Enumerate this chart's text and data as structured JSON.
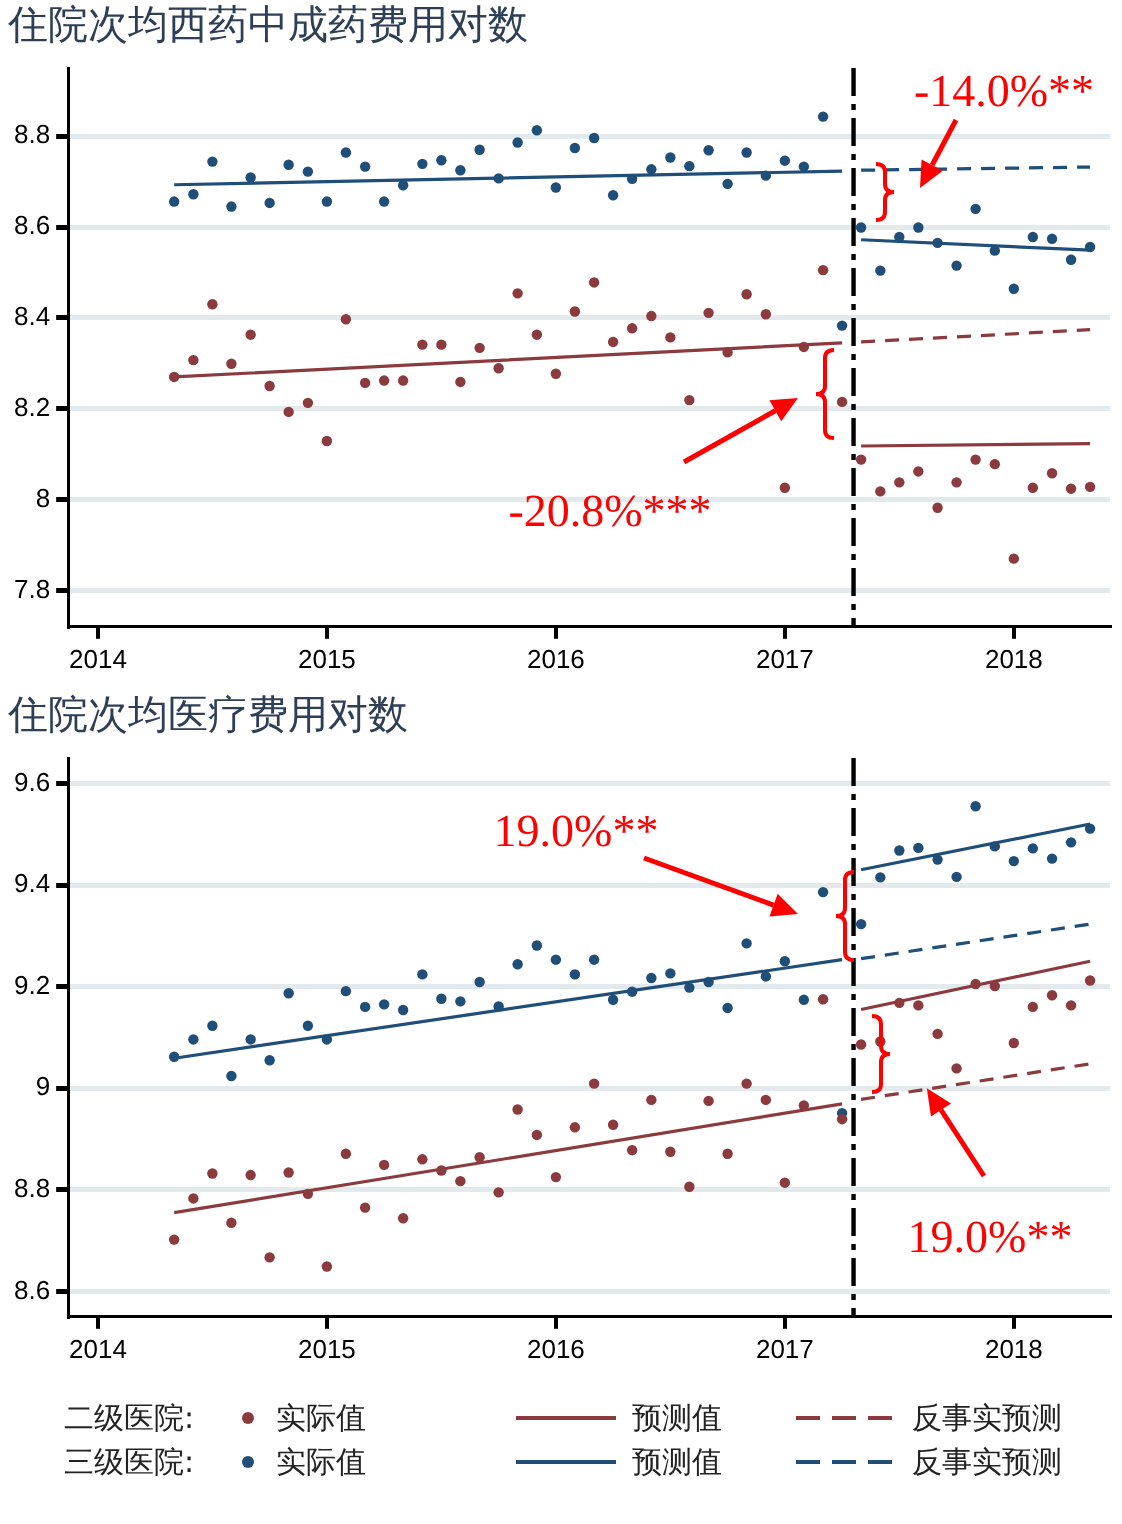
{
  "chart_data": [
    {
      "type": "scatter",
      "title": "住院次均西药中成药费用对数",
      "x": [
        2014.333,
        2014.417,
        2014.5,
        2014.583,
        2014.667,
        2014.75,
        2014.833,
        2014.917,
        2015,
        2015.083,
        2015.167,
        2015.25,
        2015.333,
        2015.417,
        2015.5,
        2015.583,
        2015.667,
        2015.75,
        2015.833,
        2015.917,
        2016,
        2016.083,
        2016.167,
        2016.25,
        2016.333,
        2016.417,
        2016.5,
        2016.583,
        2016.667,
        2016.75,
        2016.833,
        2016.917,
        2017,
        2017.083,
        2017.167,
        2017.25,
        2017.333,
        2017.417,
        2017.5,
        2017.583,
        2017.667,
        2017.75,
        2017.833,
        2017.917,
        2018,
        2018.083,
        2018.167,
        2018.25,
        2018.333
      ],
      "xlim": [
        2013.87,
        2018.42
      ],
      "xticks": [
        2014,
        2015,
        2016,
        2017,
        2018
      ],
      "ylim": [
        7.72,
        8.95
      ],
      "yticks": [
        7.8,
        8,
        8.2,
        8.4,
        8.6,
        8.8
      ],
      "grid": "y",
      "ref_lines": [
        {
          "axis": "x",
          "value": 2017.3,
          "color": "#000000",
          "line_style": "dashed"
        }
      ],
      "annotations": [
        "-14.0%**",
        "-20.8%***"
      ],
      "series": [
        {
          "marker": "circle",
          "color": "#8b3a3e",
          "values": [
            8.27,
            8.307,
            8.43,
            8.299,
            8.363,
            8.25,
            8.193,
            8.213,
            8.129,
            8.397,
            8.257,
            8.262,
            8.262,
            8.341,
            8.341,
            8.259,
            8.334,
            8.289,
            8.454,
            8.363,
            8.277,
            8.414,
            8.478,
            8.347,
            8.377,
            8.404,
            8.357,
            8.219,
            8.411,
            8.324,
            8.452,
            8.408,
            8.026,
            8.336,
            8.505,
            8.215,
            8.088,
            8.018,
            8.038,
            8.062,
            7.982,
            8.038,
            8.088,
            8.078,
            7.87,
            8.026,
            8.058,
            8.024,
            8.028
          ]
        },
        {
          "type": "line",
          "color": "#8b3a3e",
          "x": [
            2014.333,
            2017.25,
            2017.3,
            2017.333,
            2018.333
          ],
          "values": [
            8.27,
            8.345,
            null,
            8.118,
            8.123
          ]
        },
        {
          "type": "line",
          "color": "#8b3a3e",
          "line_style": "dashed",
          "x": [
            2017.333,
            2018.333
          ],
          "values": [
            8.347,
            8.374
          ]
        },
        {
          "marker": "circle",
          "color": "#1f4e79",
          "values": [
            8.656,
            8.672,
            8.744,
            8.645,
            8.709,
            8.653,
            8.737,
            8.722,
            8.656,
            8.764,
            8.733,
            8.656,
            8.692,
            8.739,
            8.747,
            8.725,
            8.77,
            8.707,
            8.786,
            8.813,
            8.687,
            8.774,
            8.796,
            8.67,
            8.706,
            8.727,
            8.753,
            8.734,
            8.769,
            8.695,
            8.764,
            8.713,
            8.746,
            8.733,
            8.843,
            8.383,
            8.599,
            8.504,
            8.578,
            8.599,
            8.565,
            8.515,
            8.64,
            8.548,
            8.464,
            8.578,
            8.574,
            8.528,
            8.556
          ]
        },
        {
          "type": "line",
          "color": "#1f4e79",
          "x": [
            2014.333,
            2017.25,
            2017.3,
            2017.333,
            2018.333
          ],
          "values": [
            8.693,
            8.723,
            null,
            8.572,
            8.549
          ]
        },
        {
          "type": "line",
          "color": "#1f4e79",
          "line_style": "dashed",
          "x": [
            2017.333,
            2018.333
          ],
          "values": [
            8.725,
            8.732
          ]
        }
      ]
    },
    {
      "type": "scatter",
      "title": "住院次均医疗费用对数",
      "x": [
        2014.333,
        2014.417,
        2014.5,
        2014.583,
        2014.667,
        2014.75,
        2014.833,
        2014.917,
        2015,
        2015.083,
        2015.167,
        2015.25,
        2015.333,
        2015.417,
        2015.5,
        2015.583,
        2015.667,
        2015.75,
        2015.833,
        2015.917,
        2016,
        2016.083,
        2016.167,
        2016.25,
        2016.333,
        2016.417,
        2016.5,
        2016.583,
        2016.667,
        2016.75,
        2016.833,
        2016.917,
        2017,
        2017.083,
        2017.167,
        2017.25,
        2017.333,
        2017.417,
        2017.5,
        2017.583,
        2017.667,
        2017.75,
        2017.833,
        2017.917,
        2018,
        2018.083,
        2018.167,
        2018.25,
        2018.333
      ],
      "xlim": [
        2013.87,
        2018.42
      ],
      "xticks": [
        2014,
        2015,
        2016,
        2017,
        2018
      ],
      "ylim": [
        8.55,
        9.65
      ],
      "yticks": [
        8.6,
        8.8,
        9,
        9.2,
        9.4,
        9.6
      ],
      "grid": "y",
      "legend": "bottom",
      "ref_lines": [
        {
          "axis": "x",
          "value": 2017.3,
          "color": "#000000",
          "line_style": "dashed"
        }
      ],
      "annotations": [
        "19.0%**",
        {
          "text": "19.0%**",
          "x": 2017.62,
          "y": 9.0
        },
        "二级医院:",
        "三级医院:"
      ],
      "series": [
        {
          "marker": "circle",
          "name": "实际值",
          "color": "#8b3a3e",
          "values": [
            8.702,
            8.783,
            8.832,
            8.735,
            8.829,
            8.667,
            8.834,
            8.792,
            8.649,
            8.871,
            8.765,
            8.849,
            8.744,
            8.86,
            8.838,
            8.817,
            8.864,
            8.795,
            8.958,
            8.908,
            8.825,
            8.923,
            9.009,
            8.928,
            8.878,
            8.977,
            8.875,
            8.806,
            8.975,
            8.871,
            9.009,
            8.977,
            8.814,
            8.966,
            9.175,
            8.939,
            9.086,
            9.092,
            9.168,
            9.163,
            9.107,
            9.039,
            9.205,
            9.201,
            9.089,
            9.16,
            9.183,
            9.163,
            9.212
          ]
        },
        {
          "type": "line",
          "name": "预测值",
          "color": "#8b3a3e",
          "x": [
            2014.333,
            2017.25,
            2017.3,
            2017.333,
            2018.333
          ],
          "values": [
            8.755,
            8.969,
            null,
            9.155,
            9.25
          ]
        },
        {
          "type": "line",
          "name": "反事实预测",
          "color": "#8b3a3e",
          "line_style": "dashed",
          "x": [
            2017.333,
            2018.333
          ],
          "values": [
            8.978,
            9.048
          ]
        },
        {
          "marker": "circle",
          "name": "实际值",
          "color": "#1f4e79",
          "values": [
            9.062,
            9.096,
            9.123,
            9.024,
            9.096,
            9.055,
            9.187,
            9.123,
            9.096,
            9.191,
            9.16,
            9.165,
            9.154,
            9.224,
            9.176,
            9.171,
            9.209,
            9.161,
            9.244,
            9.281,
            9.253,
            9.224,
            9.253,
            9.174,
            9.19,
            9.217,
            9.226,
            9.198,
            9.209,
            9.158,
            9.285,
            9.22,
            9.25,
            9.174,
            9.386,
            8.951,
            9.323,
            9.415,
            9.468,
            9.473,
            9.45,
            9.416,
            9.555,
            9.476,
            9.447,
            9.472,
            9.452,
            9.484,
            9.511
          ]
        },
        {
          "type": "line",
          "name": "预测值",
          "color": "#1f4e79",
          "x": [
            2014.333,
            2017.25,
            2017.3,
            2017.333,
            2018.333
          ],
          "values": [
            9.059,
            9.253,
            null,
            9.43,
            9.52
          ]
        },
        {
          "type": "line",
          "name": "反事实预测",
          "color": "#1f4e79",
          "line_style": "dashed",
          "x": [
            2017.333,
            2018.333
          ],
          "values": [
            9.255,
            9.323
          ]
        }
      ]
    }
  ]
}
